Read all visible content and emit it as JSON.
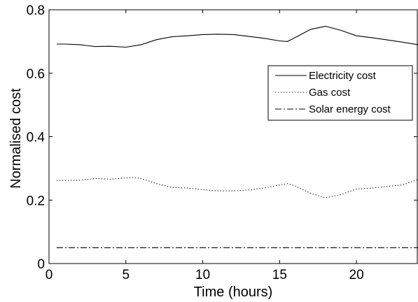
{
  "chart_data": {
    "type": "line",
    "xlabel": "Time (hours)",
    "ylabel": "Normalised cost",
    "xlim": [
      0,
      24
    ],
    "ylim": [
      0,
      0.8
    ],
    "xticks": [
      0,
      5,
      10,
      15,
      20
    ],
    "yticks": [
      0,
      0.2,
      0.4,
      0.6,
      0.8
    ],
    "xtick_labels": [
      "0",
      "5",
      "10",
      "15",
      "20"
    ],
    "ytick_labels": [
      "0",
      "0.2",
      "0.4",
      "0.6",
      "0.8"
    ],
    "grid": false,
    "legend_position": "top-right",
    "series": [
      {
        "name": "Electricity cost",
        "style": "solid",
        "x": [
          0.5,
          1,
          2,
          3,
          4,
          5,
          6,
          7,
          8,
          9,
          10,
          11,
          12,
          13,
          14,
          15,
          15.5,
          16,
          17,
          18,
          19,
          20,
          21,
          22,
          23,
          24
        ],
        "y": [
          0.692,
          0.692,
          0.69,
          0.684,
          0.685,
          0.682,
          0.69,
          0.706,
          0.715,
          0.718,
          0.722,
          0.723,
          0.722,
          0.716,
          0.71,
          0.702,
          0.7,
          0.712,
          0.738,
          0.748,
          0.735,
          0.718,
          0.712,
          0.705,
          0.698,
          0.69
        ]
      },
      {
        "name": "Gas cost",
        "style": "dotted",
        "x": [
          0.5,
          1,
          2,
          3,
          4,
          5,
          5.5,
          6,
          7,
          8,
          9,
          10,
          11,
          12,
          13,
          14,
          15,
          15.5,
          16,
          17,
          18,
          19,
          20,
          21,
          22,
          23,
          24
        ],
        "y": [
          0.262,
          0.262,
          0.263,
          0.268,
          0.266,
          0.27,
          0.271,
          0.268,
          0.252,
          0.24,
          0.238,
          0.233,
          0.229,
          0.229,
          0.232,
          0.238,
          0.248,
          0.252,
          0.245,
          0.222,
          0.207,
          0.218,
          0.235,
          0.238,
          0.243,
          0.248,
          0.265
        ]
      },
      {
        "name": "Solar energy cost",
        "style": "dashdot",
        "x": [
          0.5,
          24
        ],
        "y": [
          0.05,
          0.05
        ]
      }
    ]
  }
}
